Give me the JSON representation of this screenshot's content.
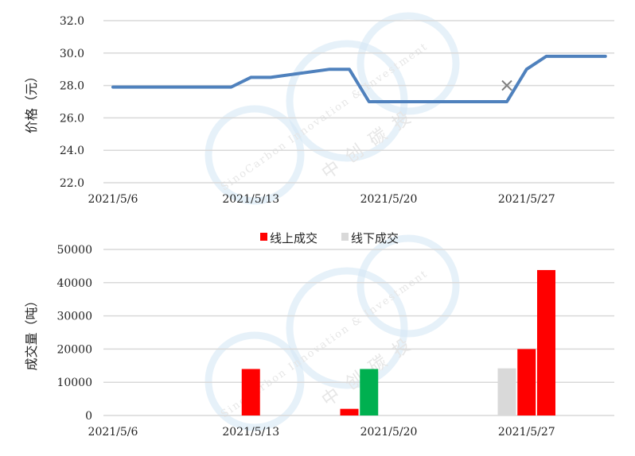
{
  "watermark": {
    "text_en": "SinoCarbon Innovation & Investment",
    "text_cn": "中创碳投",
    "color": "#d6e8f5"
  },
  "chart_data": [
    {
      "type": "line",
      "ylabel": "价格（元）",
      "xlabel": "",
      "ylim": [
        22,
        32
      ],
      "yticks": [
        "22.0",
        "24.0",
        "26.0",
        "28.0",
        "30.0",
        "32.0"
      ],
      "xticks": [
        "2021/5/6",
        "2021/5/13",
        "2021/5/20",
        "2021/5/27"
      ],
      "xrange": [
        "2021/5/6",
        "2021/5/31"
      ],
      "grid": true,
      "color": "#4f81bd",
      "x": [
        "2021/5/6",
        "2021/5/12",
        "2021/5/13",
        "2021/5/14",
        "2021/5/17",
        "2021/5/18",
        "2021/5/19",
        "2021/5/26",
        "2021/5/27",
        "2021/5/28",
        "2021/5/31"
      ],
      "y": [
        27.9,
        27.9,
        28.5,
        28.5,
        29.0,
        29.0,
        27.0,
        27.0,
        29.0,
        29.8,
        29.8
      ],
      "markers": [
        {
          "x": "2021/5/26",
          "y": 28.0,
          "symbol": "x",
          "color": "#7f7f7f"
        }
      ]
    },
    {
      "type": "bar",
      "ylabel": "成交量（吨）",
      "xlabel": "",
      "ylim": [
        0,
        50000
      ],
      "yticks": [
        "0",
        "10000",
        "20000",
        "30000",
        "40000",
        "50000"
      ],
      "xticks": [
        "2021/5/6",
        "2021/5/13",
        "2021/5/20",
        "2021/5/27"
      ],
      "xrange": [
        "2021/5/6",
        "2021/5/31"
      ],
      "grid": true,
      "legend": {
        "placement": "top",
        "entries": [
          {
            "name": "线上成交",
            "color": "#ff0000"
          },
          {
            "name": "线下成交",
            "color": "#d9d9d9"
          }
        ]
      },
      "bars": [
        {
          "x": "2021/5/13",
          "value": 14000,
          "color": "#ff0000"
        },
        {
          "x": "2021/5/18",
          "value": 2000,
          "color": "#ff0000"
        },
        {
          "x": "2021/5/19",
          "value": 14000,
          "color": "#00b050"
        },
        {
          "x": "2021/5/26",
          "value": 14200,
          "color": "#d9d9d9"
        },
        {
          "x": "2021/5/27",
          "value": 20000,
          "color": "#ff0000"
        },
        {
          "x": "2021/5/28",
          "value": 43800,
          "color": "#ff0000"
        }
      ]
    }
  ]
}
